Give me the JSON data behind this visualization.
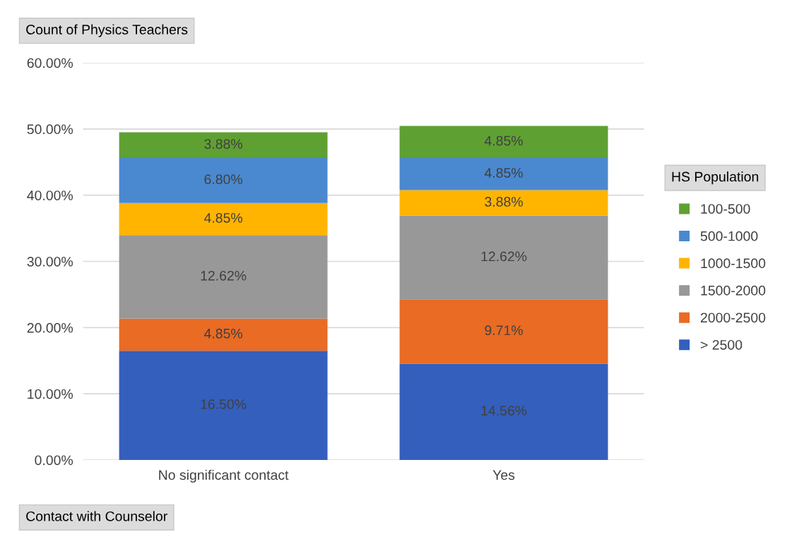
{
  "chart_data": {
    "type": "bar",
    "stacked": true,
    "title": "Count of Physics Teachers",
    "xlabel": "Contact with Counselor",
    "legend_title": "HS Population",
    "categories": [
      "No significant contact",
      "Yes"
    ],
    "series": [
      {
        "name": "> 2500",
        "color": "#345fbd",
        "values": [
          16.5,
          14.56
        ],
        "value_labels": [
          "16.50%",
          "14.56%"
        ]
      },
      {
        "name": "2000-2500",
        "color": "#e96b24",
        "values": [
          4.85,
          9.71
        ],
        "value_labels": [
          "4.85%",
          "9.71%"
        ]
      },
      {
        "name": "1500-2000",
        "color": "#989898",
        "values": [
          12.62,
          12.62
        ],
        "value_labels": [
          "12.62%",
          "12.62%"
        ]
      },
      {
        "name": "1000-1500",
        "color": "#ffb400",
        "values": [
          4.85,
          3.88
        ],
        "value_labels": [
          "4.85%",
          "3.88%"
        ]
      },
      {
        "name": "500-1000",
        "color": "#4a89d0",
        "values": [
          6.8,
          4.85
        ],
        "value_labels": [
          "6.80%",
          "4.85%"
        ]
      },
      {
        "name": "100-500",
        "color": "#5fa033",
        "values": [
          3.88,
          4.85
        ],
        "value_labels": [
          "3.88%",
          "4.85%"
        ]
      }
    ],
    "ylim": [
      0,
      60
    ],
    "yticks": [
      {
        "value": 0,
        "label": "0.00%"
      },
      {
        "value": 10,
        "label": "10.00%"
      },
      {
        "value": 20,
        "label": "20.00%"
      },
      {
        "value": 30,
        "label": "30.00%"
      },
      {
        "value": 40,
        "label": "40.00%"
      },
      {
        "value": 50,
        "label": "50.00%"
      },
      {
        "value": 60,
        "label": "60.00%"
      }
    ],
    "grid": "y",
    "legend": "right"
  }
}
